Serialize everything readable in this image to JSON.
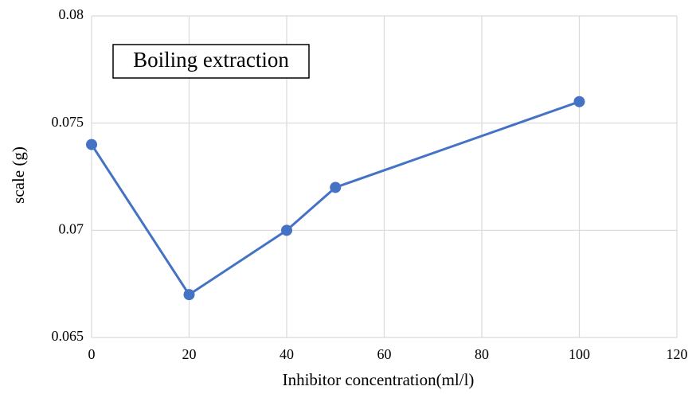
{
  "chart_data": {
    "type": "line",
    "title": "",
    "annotation": "Boiling extraction",
    "xlabel": "Inhibitor concentration(ml/l)",
    "ylabel": "scale (g)",
    "xlim": [
      0,
      120
    ],
    "ylim": [
      0.065,
      0.08
    ],
    "xticks": [
      0,
      20,
      40,
      60,
      80,
      100,
      120
    ],
    "yticks": [
      0.065,
      0.07,
      0.075,
      0.08
    ],
    "xtick_labels": [
      "0",
      "20",
      "40",
      "60",
      "80",
      "100",
      "120"
    ],
    "ytick_labels": [
      "0.065",
      "0.07",
      "0.075",
      "0.08"
    ],
    "grid": true,
    "legend": "none",
    "series": [
      {
        "color": "#4472c4",
        "x": [
          0,
          20,
          40,
          50,
          100
        ],
        "y": [
          0.074,
          0.067,
          0.07,
          0.072,
          0.076
        ]
      }
    ]
  }
}
